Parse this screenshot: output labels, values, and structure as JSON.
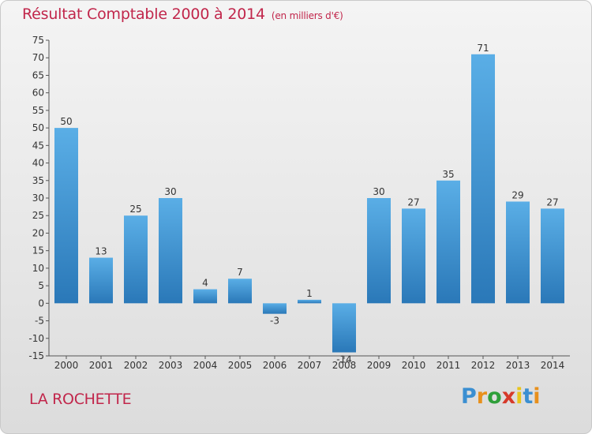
{
  "title": "Résultat Comptable 2000 à 2014",
  "subtitle": "(en milliers d'€)",
  "commune": "LA ROCHETTE",
  "logo": {
    "text": "Proxiti",
    "letters": [
      "P",
      "r",
      "o",
      "x",
      "i",
      "t",
      "i"
    ],
    "colors": [
      "#3b8fd1",
      "#e8901c",
      "#2f9f3a",
      "#d63a2a",
      "#e8c51c",
      "#3b8fd1",
      "#e8901c"
    ]
  },
  "colors": {
    "bar_top": "#5aaee6",
    "bar_bottom": "#2a78b8",
    "accent": "#c1264b"
  },
  "chart_data": {
    "type": "bar",
    "title": "Résultat Comptable 2000 à 2014",
    "xlabel": "",
    "ylabel": "",
    "categories": [
      "2000",
      "2001",
      "2002",
      "2003",
      "2004",
      "2005",
      "2006",
      "2007",
      "2008",
      "2009",
      "2010",
      "2011",
      "2012",
      "2013",
      "2014"
    ],
    "values": [
      50,
      13,
      25,
      30,
      4,
      7,
      -3,
      1,
      -14,
      30,
      27,
      35,
      71,
      29,
      27
    ],
    "ylim": [
      -15,
      75
    ],
    "yticks": [
      -15,
      -10,
      -5,
      0,
      5,
      10,
      15,
      20,
      25,
      30,
      35,
      40,
      45,
      50,
      55,
      60,
      65,
      70,
      75
    ],
    "grid": false
  }
}
